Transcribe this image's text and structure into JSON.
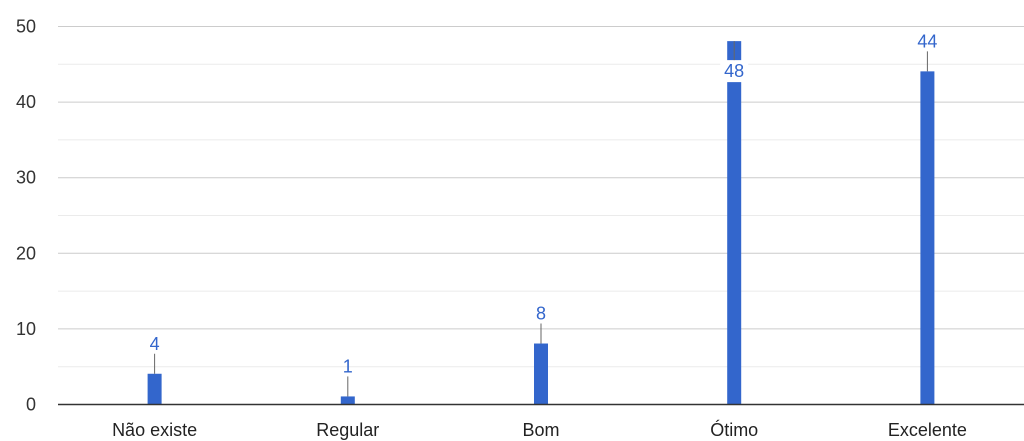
{
  "chart_data": {
    "type": "bar",
    "title": "",
    "xlabel": "",
    "ylabel": "",
    "categories": [
      "Não existe",
      "Regular",
      "Bom",
      "Ótimo",
      "Excelente"
    ],
    "values": [
      4,
      1,
      8,
      48,
      44
    ],
    "value_labels": [
      "4",
      "1",
      "8",
      "48",
      "44"
    ],
    "ylim": [
      0,
      50
    ],
    "yticks": [
      0,
      10,
      20,
      30,
      40,
      50
    ],
    "ytick_labels": [
      "0",
      "10",
      "20",
      "30",
      "40",
      "50"
    ],
    "grid": true,
    "legend": "none",
    "colors": {
      "bar": "#3366cc",
      "label": "#3366cc",
      "grid_major": "#cccccc",
      "grid_minor": "#ebebeb",
      "axis": "#333333"
    }
  }
}
